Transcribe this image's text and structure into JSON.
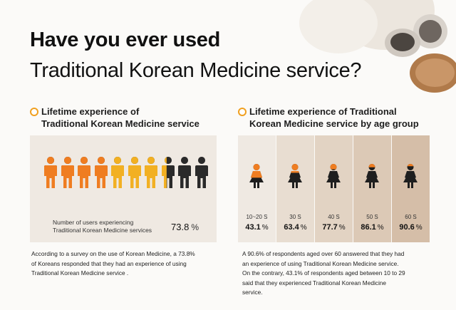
{
  "title": {
    "line1": "Have you ever used",
    "line2": "Traditional Korean Medicine service?"
  },
  "left": {
    "heading": [
      "Lifetime experience of",
      "Traditional Korean Medicine service"
    ],
    "users_label": [
      "Number of users experiencing",
      "Traditional Korean Medicine services"
    ],
    "users_value": "73.8",
    "users_unit": "%",
    "description": [
      "According to a survey on the use of Korean Medicine, a 73.8%",
      "of Koreans responded that they had an experience of using",
      "Traditional Korean Medicine service ."
    ]
  },
  "right": {
    "heading": [
      "Lifetime experience of Traditional",
      "Korean Medicine service by age group"
    ],
    "description": [
      "A 90.6% of respondents aged over 60 answered that they had",
      "an experience of using Traditional Korean Medicine service.",
      "On the contrary, 43.1% of respondents aged between 10 to 29",
      "said that they experienced Traditional Korean Medicine",
      "service."
    ]
  },
  "chart_data": [
    {
      "type": "pictogram",
      "total_icons": 10,
      "value_percent": 73.8,
      "colors": {
        "filled_orange": "#ef7d21",
        "filled_yellow": "#f2b023",
        "unfilled": "#2a2a2a"
      }
    },
    {
      "type": "bar",
      "categories": [
        "10~20 S",
        "30 S",
        "40 S",
        "50 S",
        "60 S"
      ],
      "values": [
        43.1,
        63.4,
        77.7,
        86.1,
        90.6
      ],
      "unit": "%",
      "colors": {
        "accent": "#ef7d21",
        "figure": "#1e1e1e"
      }
    }
  ],
  "colors": {
    "accent": "#f0a020",
    "panel": "#efe9e2",
    "background": "#fbfaf8"
  }
}
